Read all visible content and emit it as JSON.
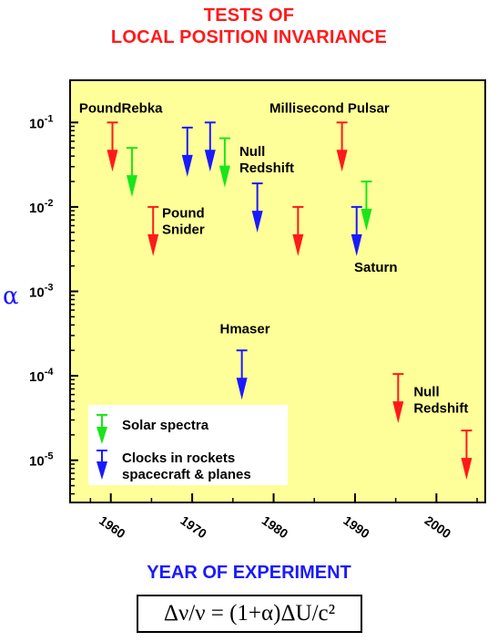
{
  "title_lines": [
    "TESTS OF",
    "LOCAL POSITION INVARIANCE"
  ],
  "formula": "Δν/ν = (1+α)ΔU/c²",
  "colors": {
    "red": "#ff1a1a",
    "green": "#19e619",
    "blue": "#1a1aff",
    "plot_bg": "#ffff99",
    "title": "#ff1a1a",
    "xlabel": "#1a1aff"
  },
  "chart_data": {
    "type": "scatter",
    "title": "TESTS OF LOCAL POSITION INVARIANCE",
    "xlabel": "YEAR OF EXPERIMENT",
    "ylabel": "α",
    "xlim": [
      1955,
      2006
    ],
    "ylim_log10": [
      -5.5,
      -0.5
    ],
    "y_scale": "log",
    "x_ticks": [
      "1960",
      "1970",
      "1980",
      "1990",
      "2000"
    ],
    "y_ticks": [
      {
        "value": 0.1,
        "base": "10",
        "exp": "-1"
      },
      {
        "value": 0.01,
        "base": "10",
        "exp": "-2"
      },
      {
        "value": 0.001,
        "base": "10",
        "exp": "-3"
      },
      {
        "value": 0.0001,
        "base": "10",
        "exp": "-4"
      },
      {
        "value": 1e-05,
        "base": "10",
        "exp": "-5"
      }
    ],
    "marker": "upper-limit arrow",
    "points": [
      {
        "year": 1960.2,
        "alpha": 0.1,
        "series": "red"
      },
      {
        "year": 1962.6,
        "alpha": 0.05,
        "series": "green"
      },
      {
        "year": 1965.2,
        "alpha": 0.01,
        "series": "red"
      },
      {
        "year": 1969.4,
        "alpha": 0.087,
        "series": "blue"
      },
      {
        "year": 1972.2,
        "alpha": 0.1,
        "series": "blue"
      },
      {
        "year": 1974.0,
        "alpha": 0.065,
        "series": "green"
      },
      {
        "year": 1978.0,
        "alpha": 0.019,
        "series": "blue"
      },
      {
        "year": 1983.0,
        "alpha": 0.01,
        "series": "red"
      },
      {
        "year": 1988.4,
        "alpha": 0.1,
        "series": "red"
      },
      {
        "year": 1990.2,
        "alpha": 0.01,
        "series": "blue"
      },
      {
        "year": 1991.4,
        "alpha": 0.02,
        "series": "green"
      },
      {
        "year": 1976.1,
        "alpha": 0.0002,
        "series": "blue"
      },
      {
        "year": 1995.3,
        "alpha": 0.000105,
        "series": "red"
      },
      {
        "year": 2003.7,
        "alpha": 2.25e-05,
        "series": "red"
      }
    ],
    "annotations": [
      {
        "lines": [
          "PoundRebka"
        ],
        "year": 1956.1,
        "alpha": 0.13
      },
      {
        "lines": [
          "Millisecond Pulsar"
        ],
        "year": 1979.5,
        "alpha": 0.13
      },
      {
        "lines": [
          "Null",
          "Redshift"
        ],
        "year": 1975.8,
        "alpha": 0.04
      },
      {
        "lines": [
          "Pound",
          "Snider"
        ],
        "year": 1966.3,
        "alpha": 0.0075
      },
      {
        "lines": [
          "Saturn"
        ],
        "year": 1989.9,
        "alpha": 0.0017
      },
      {
        "lines": [
          "Hmaser"
        ],
        "year": 1973.4,
        "alpha": 0.00032
      },
      {
        "lines": [
          "Null",
          "Redshift"
        ],
        "year": 1997.2,
        "alpha": 5.7e-05
      }
    ],
    "legend": {
      "placement": "bottom-left",
      "entries": [
        {
          "label": "Solar spectra",
          "color": "green"
        },
        {
          "label": "Clocks in rockets spacecraft & planes",
          "label_lines": [
            "Clocks in rockets",
            "spacecraft & planes"
          ],
          "color": "blue"
        }
      ]
    }
  }
}
